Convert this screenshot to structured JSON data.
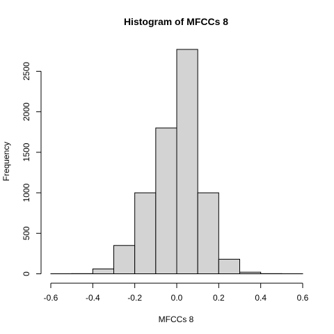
{
  "chart_data": {
    "type": "bar",
    "title": "Histogram of MFCCs 8",
    "xlabel": "MFCCs 8",
    "ylabel": "Frequency",
    "bins": [
      {
        "from": -0.6,
        "to": -0.5,
        "count": 1
      },
      {
        "from": -0.5,
        "to": -0.4,
        "count": 2
      },
      {
        "from": -0.4,
        "to": -0.3,
        "count": 60
      },
      {
        "from": -0.3,
        "to": -0.2,
        "count": 350
      },
      {
        "from": -0.2,
        "to": -0.1,
        "count": 1000
      },
      {
        "from": -0.1,
        "to": 0.0,
        "count": 1800
      },
      {
        "from": 0.0,
        "to": 0.1,
        "count": 2770
      },
      {
        "from": 0.1,
        "to": 0.2,
        "count": 1000
      },
      {
        "from": 0.2,
        "to": 0.3,
        "count": 180
      },
      {
        "from": 0.3,
        "to": 0.4,
        "count": 20
      },
      {
        "from": 0.4,
        "to": 0.5,
        "count": 2
      },
      {
        "from": 0.5,
        "to": 0.6,
        "count": 1
      }
    ],
    "xlim": [
      -0.6,
      0.6
    ],
    "ylim": [
      0,
      2770
    ],
    "xticks": [
      "-0.6",
      "-0.4",
      "-0.2",
      "0.0",
      "0.2",
      "0.4",
      "0.6"
    ],
    "yticks": [
      "0",
      "500",
      "1000",
      "1500",
      "2000",
      "2500"
    ],
    "grid": false,
    "bar_fill": "#d3d3d3",
    "bar_stroke": "#000000"
  }
}
